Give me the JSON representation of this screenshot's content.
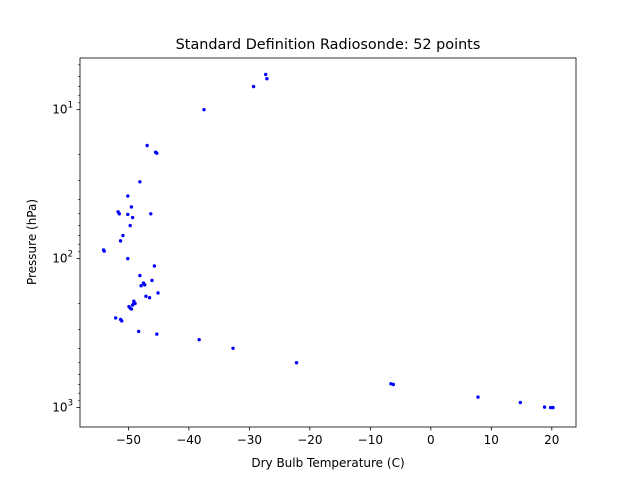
{
  "chart_data": {
    "type": "scatter",
    "title": "Standard Definition Radiosonde: 52 points",
    "xlabel": "Dry Bulb Temperature (C)",
    "ylabel": "Pressure (hPa)",
    "xlim": [
      -58,
      24
    ],
    "ylim": [
      1350,
      4.5
    ],
    "yscale": "log",
    "yaxis_inverted": true,
    "grid": false,
    "marker_color": "#0000ff",
    "x_ticks": [
      -50,
      -40,
      -30,
      -20,
      -10,
      0,
      10,
      20
    ],
    "x_tick_labels": [
      "−50",
      "−40",
      "−30",
      "−20",
      "−10",
      "0",
      "10",
      "20"
    ],
    "y_ticks": [
      10,
      100,
      1000
    ],
    "y_tick_labels": {
      "10": {
        "base": "10",
        "exp": "1"
      },
      "100": {
        "base": "10",
        "exp": "2"
      },
      "1000": {
        "base": "10",
        "exp": "3"
      }
    },
    "x": [
      20.2,
      19.8,
      18.8,
      14.8,
      7.8,
      -6.2,
      -6.6,
      -22.2,
      -32.7,
      -38.3,
      -45.3,
      -48.3,
      -51.1,
      -51.3,
      -52.1,
      -49.1,
      -49.9,
      -49.7,
      -49.1,
      -49.3,
      -48.9,
      -49.5,
      -47.1,
      -46.5,
      -47.5,
      -47.9,
      -47.3,
      -45.1,
      -46.1,
      -48.1,
      -45.7,
      -50.1,
      -54.1,
      -54.0,
      -51.3,
      -50.9,
      -49.7,
      -51.5,
      -49.3,
      -50.1,
      -51.7,
      -48.1,
      -45.3,
      -45.5,
      -46.9,
      -37.5,
      -29.3,
      -27.1,
      -27.3,
      -50.1,
      -49.5,
      -46.3
    ],
    "y": [
      1000,
      1000,
      993,
      925,
      850,
      700,
      692,
      500,
      400,
      350,
      321,
      308,
      262,
      256,
      250,
      200,
      210,
      215,
      193,
      205,
      200,
      218,
      179,
      183,
      146,
      152,
      150,
      170,
      140,
      130,
      112,
      100,
      87.5,
      89,
      76,
      70,
      60,
      50,
      53,
      50.5,
      48.5,
      30.5,
      19.6,
      19.3,
      17.4,
      10,
      7,
      6.2,
      5.8,
      38,
      45,
      50
    ]
  }
}
